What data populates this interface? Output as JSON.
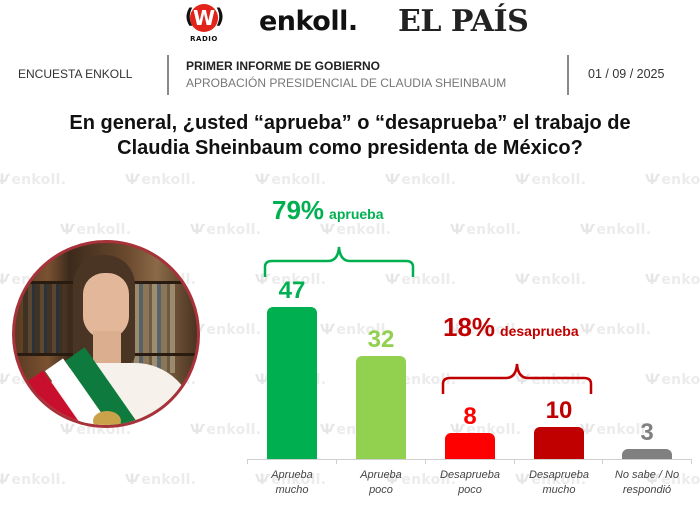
{
  "logos": {
    "w_radio": {
      "letter": "W",
      "waves": "((   ))",
      "sub": "RADIO"
    },
    "enkoll": "enkoll.",
    "el_pais": "EL PAÍS"
  },
  "header": {
    "left": "ENCUESTA ENKOLL",
    "title": "PRIMER INFORME DE GOBIERNO",
    "subtitle": "APROBACIÓN PRESIDENCIAL DE CLAUDIA SHEINBAUM",
    "date": "01 / 09 / 2025"
  },
  "question": {
    "line1": "En general, ¿usted “aprueba” o “desaprueba” el trabajo de",
    "line2": "Claudia Sheinbaum como presidenta de México?"
  },
  "photo": {
    "alt": "Claudia Sheinbaum with presidential sash"
  },
  "watermark": "enkoll.",
  "groups": {
    "approve": {
      "pct": "79%",
      "label": "aprueba",
      "color": "#00b050"
    },
    "disapprove": {
      "pct": "18%",
      "label": "desaprueba",
      "color": "#c00000"
    }
  },
  "chart_data": {
    "type": "bar",
    "title": "En general, ¿usted “aprueba” o “desaprueba” el trabajo de Claudia Sheinbaum como presidenta de México?",
    "categories": [
      "Aprueba mucho",
      "Aprueba poco",
      "Desaprueba poco",
      "Desaprueba mucho",
      "No sabe / No respondió"
    ],
    "category_lines": [
      [
        "Aprueba",
        "mucho"
      ],
      [
        "Aprueba",
        "poco"
      ],
      [
        "Desaprueba",
        "poco"
      ],
      [
        "Desaprueba",
        "mucho"
      ],
      [
        "No sabe / No",
        "respondió"
      ]
    ],
    "values": [
      47,
      32,
      8,
      10,
      3
    ],
    "value_labels": [
      "47",
      "32",
      "8",
      "10",
      "3"
    ],
    "colors": [
      "#00b050",
      "#92d050",
      "#ff0000",
      "#c00000",
      "#808080"
    ],
    "annotations": [
      {
        "text": "79% aprueba",
        "spans": [
          "Aprueba mucho",
          "Aprueba poco"
        ]
      },
      {
        "text": "18% desaprueba",
        "spans": [
          "Desaprueba poco",
          "Desaprueba mucho"
        ]
      }
    ],
    "xlabel": "",
    "ylabel": "",
    "grid": false,
    "legend": "none",
    "unit": "%"
  }
}
